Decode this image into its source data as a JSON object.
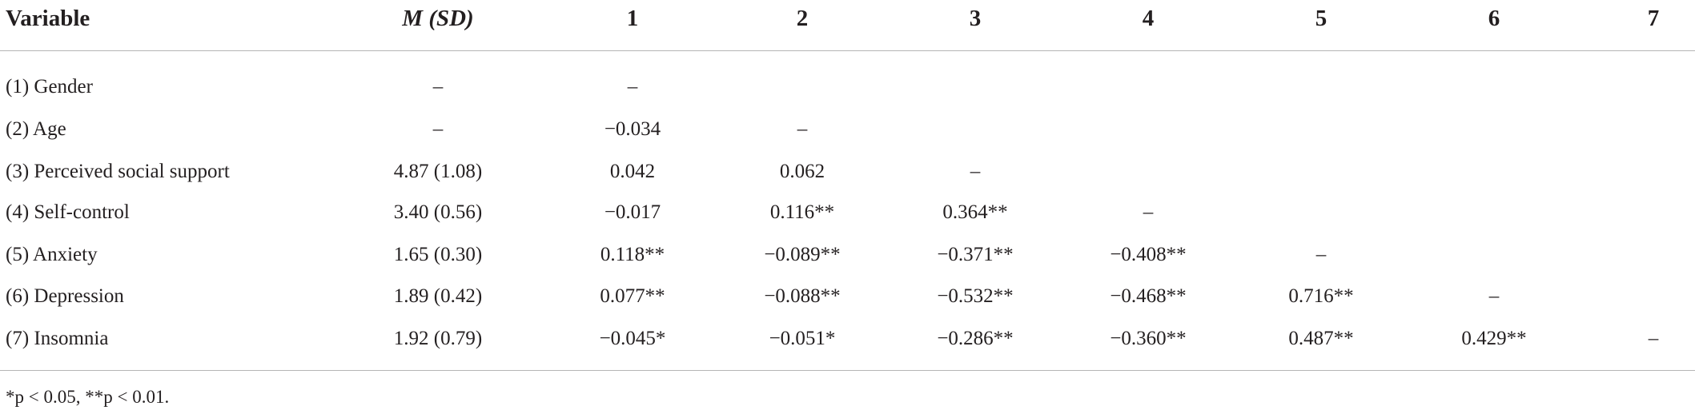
{
  "table": {
    "header": [
      "Variable",
      "M (SD)",
      "1",
      "2",
      "3",
      "4",
      "5",
      "6",
      "7"
    ],
    "rows": [
      [
        "(1) Gender",
        "–",
        "–"
      ],
      [
        "(2) Age",
        "–",
        "−0.034",
        "–"
      ],
      [
        "(3) Perceived social support",
        "4.87 (1.08)",
        "0.042",
        "0.062",
        "–"
      ],
      [
        "(4) Self-control",
        "3.40 (0.56)",
        "−0.017",
        "0.116**",
        "0.364**",
        "–"
      ],
      [
        "(5) Anxiety",
        "1.65 (0.30)",
        "0.118**",
        "−0.089**",
        "−0.371**",
        "−0.408**",
        "–"
      ],
      [
        "(6) Depression",
        "1.89 (0.42)",
        "0.077**",
        "−0.088**",
        "−0.532**",
        "−0.468**",
        "0.716**",
        "–"
      ],
      [
        "(7) Insomnia",
        "1.92 (0.79)",
        "−0.045*",
        "−0.051*",
        "−0.286**",
        "−0.360**",
        "0.487**",
        "0.429**",
        "–"
      ]
    ],
    "footnote": "*p < 0.05, **p < 0.01."
  }
}
